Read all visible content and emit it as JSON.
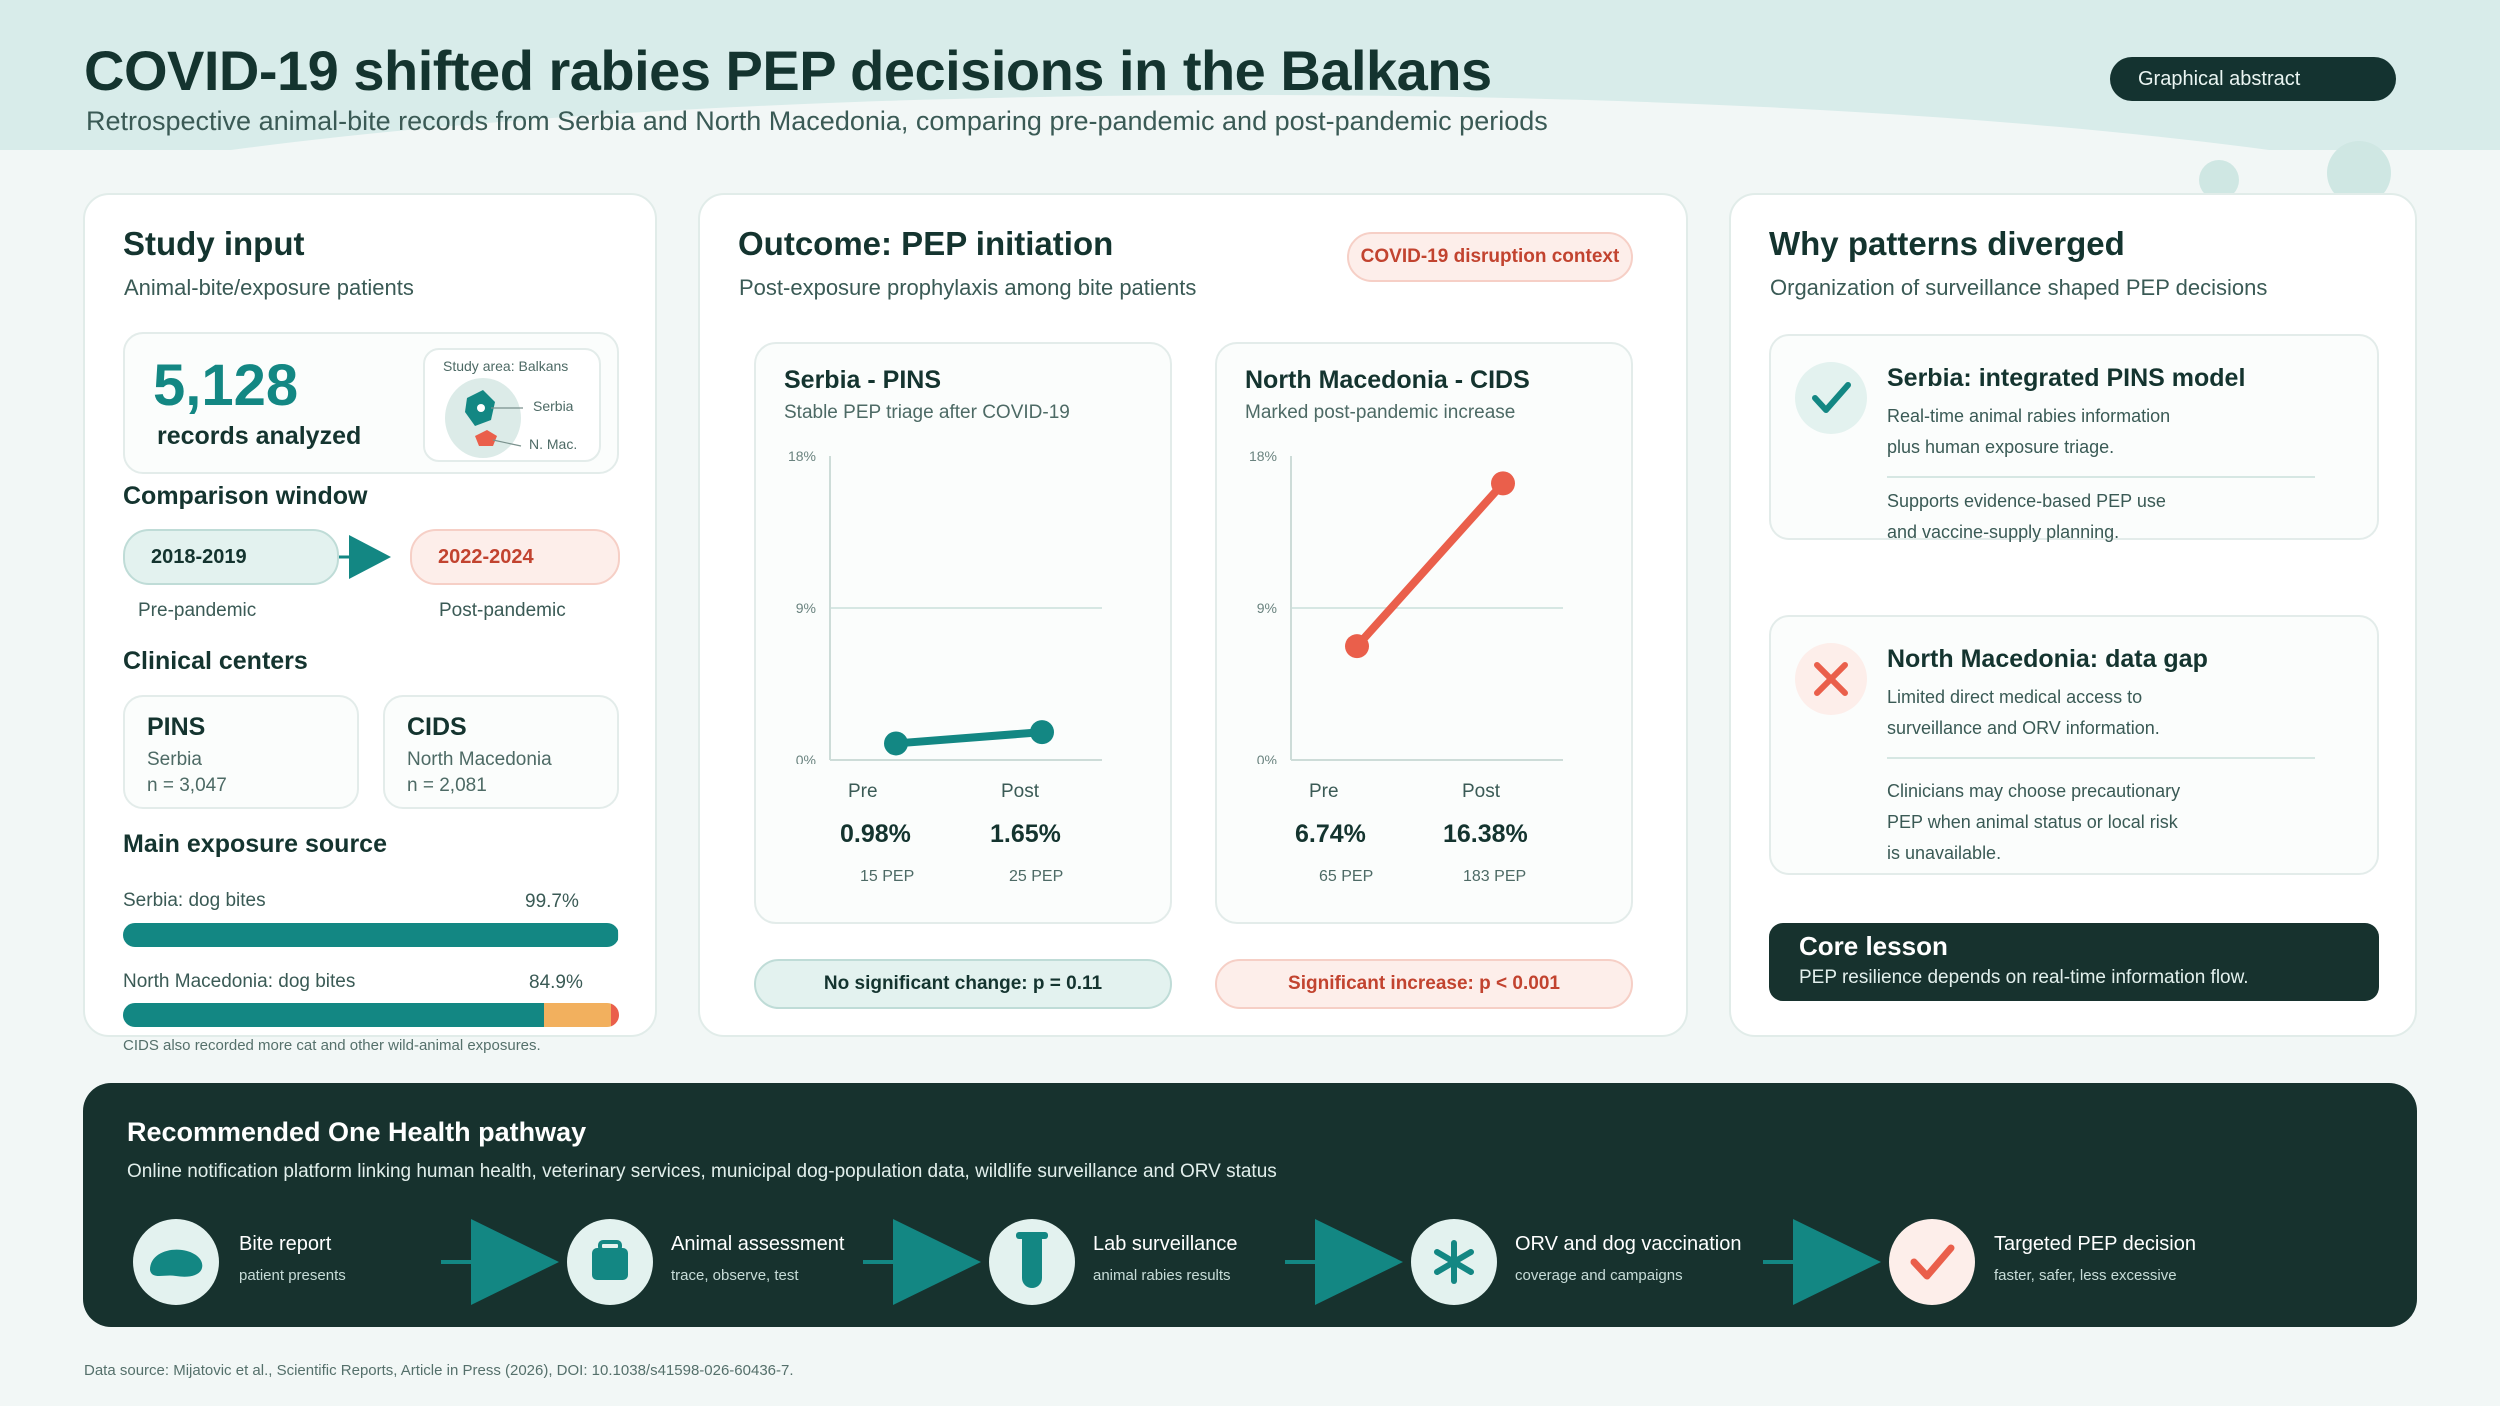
{
  "header": {
    "title": "COVID-19 shifted rabies PEP decisions in the Balkans",
    "subtitle": "Retrospective animal-bite records from Serbia and North Macedonia, comparing pre-pandemic and post-pandemic periods",
    "badge": "Graphical abstract"
  },
  "colors": {
    "teal": "#138783",
    "coral": "#ea5f4b",
    "amber": "#f2b05e",
    "dark": "#17322e"
  },
  "study_input": {
    "title": "Study input",
    "subtitle": "Animal-bite/exposure patients",
    "records_value": "5,128",
    "records_label": "records analyzed",
    "map_label": "Study area: Balkans",
    "map_serbia": "Serbia",
    "map_nmac": "N. Mac.",
    "comparison_title": "Comparison window",
    "pre_years": "2018-2019",
    "post_years": "2022-2024",
    "pre_label": "Pre-pandemic",
    "post_label": "Post-pandemic",
    "centers_title": "Clinical centers",
    "centers": [
      {
        "name": "PINS",
        "country": "Serbia",
        "n": "n = 3,047"
      },
      {
        "name": "CIDS",
        "country": "North Macedonia",
        "n": "n = 2,081"
      }
    ],
    "exposure_title": "Main exposure source",
    "exposures": [
      {
        "label": "Serbia: dog bites",
        "value_text": "99.7%",
        "fraction": 0.997
      },
      {
        "label": "North Macedonia: dog bites",
        "value_text": "84.9%",
        "fraction": 0.849
      }
    ],
    "note": "CIDS also recorded more cat and other wild-animal exposures."
  },
  "outcome": {
    "title": "Outcome: PEP initiation",
    "subtitle": "Post-exposure prophylaxis among bite patients",
    "badge": "COVID-19 disruption context",
    "panels": [
      {
        "title": "Serbia - PINS",
        "subtitle": "Stable PEP triage after COVID-19",
        "pre_label": "Pre",
        "post_label": "Post",
        "pre_value": "0.98%",
        "post_value": "1.65%",
        "pre_count": "15 PEP",
        "post_count": "25 PEP",
        "verdict": "No significant change: p = 0.11"
      },
      {
        "title": "North Macedonia - CIDS",
        "subtitle": "Marked post-pandemic increase",
        "pre_label": "Pre",
        "post_label": "Post",
        "pre_value": "6.74%",
        "post_value": "16.38%",
        "pre_count": "65 PEP",
        "post_count": "183 PEP",
        "verdict": "Significant increase: p < 0.001"
      }
    ]
  },
  "chart_data": [
    {
      "type": "line",
      "x": [
        "Pre",
        "Post"
      ],
      "series": [
        {
          "values": [
            0.98,
            1.65
          ]
        }
      ],
      "yticks": [
        "0%",
        "9%",
        "18%"
      ],
      "ylim": [
        0,
        18
      ]
    },
    {
      "type": "line",
      "x": [
        "Pre",
        "Post"
      ],
      "series": [
        {
          "values": [
            6.74,
            16.38
          ]
        }
      ],
      "yticks": [
        "0%",
        "9%",
        "18%"
      ],
      "ylim": [
        0,
        18
      ]
    }
  ],
  "why": {
    "title": "Why patterns diverged",
    "subtitle": "Organization of surveillance shaped PEP decisions",
    "serbia": {
      "title": "Serbia: integrated PINS model",
      "line1": "Real-time animal rabies information",
      "line2": "plus human exposure triage.",
      "line3": "Supports evidence-based PEP use",
      "line4": "and vaccine-supply planning."
    },
    "nmac": {
      "title": "North Macedonia: data gap",
      "line1": "Limited direct medical access to",
      "line2": "surveillance and ORV information.",
      "line3": "Clinicians may choose precautionary",
      "line4": "PEP when animal status or local risk",
      "line5": "is unavailable."
    },
    "lesson_title": "Core lesson",
    "lesson_text": "PEP resilience depends on real-time information flow."
  },
  "pathway": {
    "title": "Recommended One Health pathway",
    "subtitle": "Online notification platform linking human health, veterinary services, municipal dog-population data, wildlife surveillance and ORV status",
    "steps": [
      {
        "label": "Bite report",
        "sub": "patient presents",
        "icon": "bite-icon"
      },
      {
        "label": "Animal assessment",
        "sub": "trace, observe, test",
        "icon": "assessment-icon"
      },
      {
        "label": "Lab surveillance",
        "sub": "animal rabies results",
        "icon": "test-tube-icon"
      },
      {
        "label": "ORV and dog vaccination",
        "sub": "coverage and campaigns",
        "icon": "asterisk-icon"
      },
      {
        "label": "Targeted PEP decision",
        "sub": "faster, safer, less excessive",
        "icon": "checkmark-icon"
      }
    ]
  },
  "footer": "Data source: Mijatovic et al., Scientific Reports, Article in Press (2026), DOI: 10.1038/s41598-026-60436-7."
}
